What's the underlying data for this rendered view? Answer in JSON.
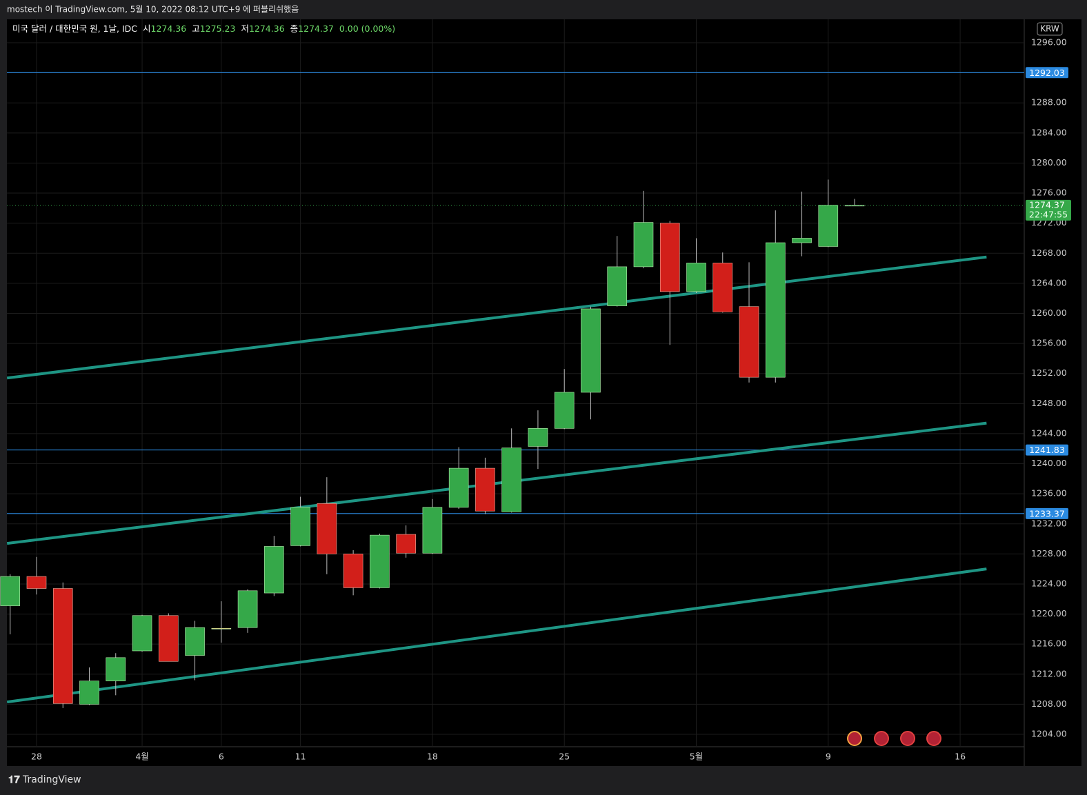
{
  "header": {
    "byline": "mostech 이 TradingView.com, 5월 10, 2022 08:12 UTC+9 에 퍼블리쉬했음",
    "brand": "TradingView"
  },
  "chart_data": {
    "type": "candlestick",
    "symbol": "미국 달러 / 대한민국 원, 1날, IDC",
    "ohlc_labels": [
      "시",
      "고",
      "저",
      "종"
    ],
    "change": "0.00 (0.00%)",
    "currency": "KRW",
    "countdown": "22:47:55",
    "categories": [
      null,
      "28",
      null,
      null,
      null,
      "4월",
      null,
      null,
      "6",
      null,
      null,
      "11",
      null,
      null,
      null,
      null,
      "18",
      null,
      null,
      null,
      null,
      "25",
      null,
      null,
      null,
      null,
      "5월",
      null,
      null,
      null,
      null,
      "9",
      null,
      null,
      null,
      null,
      "16"
    ],
    "open": [
      1221.1,
      1225.0,
      1223.4,
      1208.0,
      1211.1,
      1215.1,
      1219.8,
      1214.5,
      1218.1,
      1218.2,
      1222.8,
      1229.1,
      1234.7,
      1228.0,
      1223.5,
      1230.6,
      1228.1,
      1234.2,
      1239.4,
      1233.6,
      1242.3,
      1244.7,
      1249.5,
      1261.0,
      1266.2,
      1272.0,
      1262.9,
      1266.7,
      1260.9,
      1251.5,
      1269.4,
      1268.9,
      1274.36,
      null,
      null,
      null,
      null
    ],
    "high": [
      1225.3,
      1227.6,
      1224.2,
      1212.9,
      1214.8,
      1219.9,
      1220.1,
      1219.1,
      1221.7,
      1223.3,
      1230.4,
      1235.6,
      1238.2,
      1228.5,
      1230.7,
      1231.8,
      1235.3,
      1242.2,
      1240.8,
      1244.7,
      1247.1,
      1252.6,
      1260.9,
      1270.3,
      1276.3,
      1272.3,
      1270.0,
      1268.1,
      1266.8,
      1273.7,
      1276.2,
      1277.8,
      1275.23,
      null,
      null,
      null,
      null
    ],
    "low": [
      1217.3,
      1222.6,
      1207.5,
      1207.9,
      1209.2,
      1215.0,
      1213.7,
      1211.2,
      1216.2,
      1217.5,
      1222.4,
      1229.0,
      1225.3,
      1222.5,
      1223.4,
      1227.5,
      1228.0,
      1234.0,
      1233.3,
      1233.5,
      1239.3,
      1244.6,
      1245.9,
      1260.9,
      1266.0,
      1255.8,
      1262.7,
      1260.1,
      1250.8,
      1250.8,
      1267.6,
      1268.8,
      1274.36,
      null,
      null,
      null,
      null
    ],
    "close": [
      1225.0,
      1223.4,
      1208.1,
      1211.1,
      1214.2,
      1219.8,
      1213.7,
      1218.2,
      1218.1,
      1223.1,
      1229.0,
      1234.2,
      1228.0,
      1223.5,
      1230.5,
      1228.1,
      1234.2,
      1239.4,
      1233.7,
      1242.1,
      1244.7,
      1249.5,
      1260.6,
      1266.2,
      1272.1,
      1262.9,
      1266.7,
      1260.2,
      1251.5,
      1269.4,
      1270.0,
      1274.4,
      1274.37,
      null,
      null,
      null,
      null
    ],
    "ylim": [
      1202.35,
      1299.12
    ],
    "yticks": [
      {
        "value": 1204,
        "label": "1204.00"
      },
      {
        "value": 1208,
        "label": "1208.00"
      },
      {
        "value": 1212,
        "label": "1212.00"
      },
      {
        "value": 1216,
        "label": "1216.00"
      },
      {
        "value": 1220,
        "label": "1220.00"
      },
      {
        "value": 1224,
        "label": "1224.00"
      },
      {
        "value": 1228,
        "label": "1228.00"
      },
      {
        "value": 1232,
        "label": "1232.00"
      },
      {
        "value": 1236,
        "label": "1236.00"
      },
      {
        "value": 1240,
        "label": "1240.00"
      },
      {
        "value": 1244,
        "label": "1244.00"
      },
      {
        "value": 1248,
        "label": "1248.00"
      },
      {
        "value": 1252,
        "label": "1252.00"
      },
      {
        "value": 1256,
        "label": "1256.00"
      },
      {
        "value": 1260,
        "label": "1260.00"
      },
      {
        "value": 1264,
        "label": "1264.00"
      },
      {
        "value": 1268,
        "label": "1268.00"
      },
      {
        "value": 1272,
        "label": "1272.00"
      },
      {
        "value": 1276,
        "label": "1276.00"
      },
      {
        "value": 1280,
        "label": "1280.00"
      },
      {
        "value": 1284,
        "label": "1284.00"
      },
      {
        "value": 1288,
        "label": "1288.00"
      },
      {
        "value": 1292,
        "label": "1292.00"
      },
      {
        "value": 1296,
        "label": "1296.00"
      }
    ],
    "grid": true,
    "up_color": "#35a849",
    "down_color": "#d21f1a",
    "flat_color": "#f5a54a",
    "hlines": [
      {
        "value": 1292.03,
        "color": "#2b8ae0"
      },
      {
        "value": 1241.83,
        "color": "#2b8ae0"
      },
      {
        "value": 1233.37,
        "color": "#2b8ae0"
      }
    ],
    "trendlines": [
      {
        "x": [
          -0.12,
          37
        ],
        "y": [
          1251.4,
          1267.5
        ],
        "color": "#1e9584"
      },
      {
        "x": [
          -0.12,
          37
        ],
        "y": [
          1229.4,
          1245.4
        ],
        "color": "#1e9584"
      },
      {
        "x": [
          -0.12,
          37
        ],
        "y": [
          1208.3,
          1226.0
        ],
        "color": "#1e9584"
      }
    ]
  }
}
